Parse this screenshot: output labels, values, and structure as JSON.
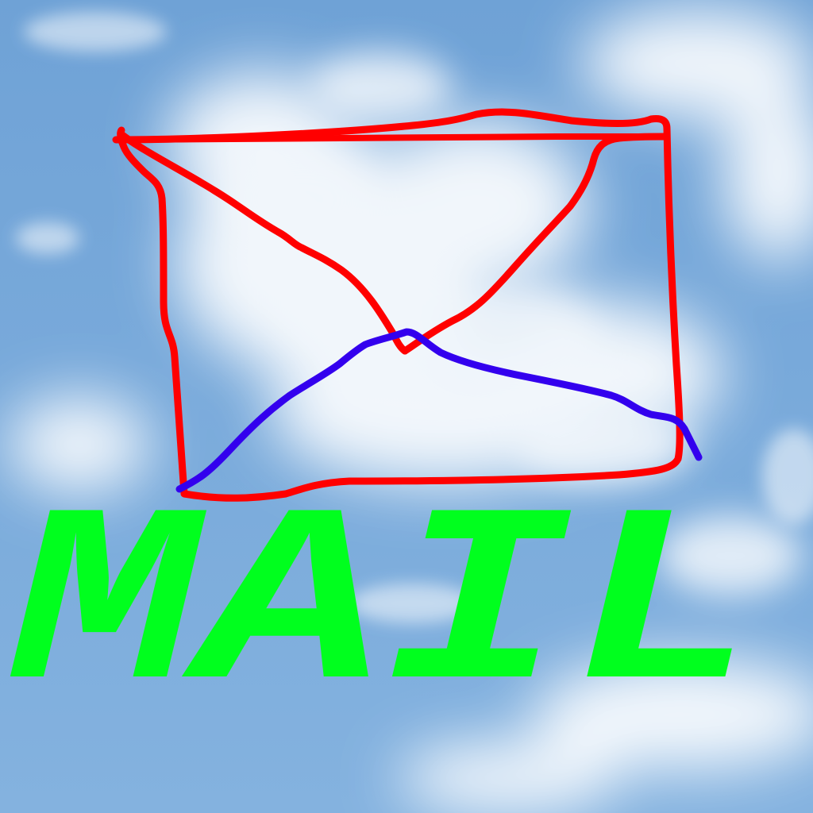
{
  "label": "MAIL",
  "colors": {
    "sky_top": "#6FA2D6",
    "sky_bottom": "#84B2DF",
    "cloud": "#FFFFFF",
    "envelope_outline": "#FF0000",
    "envelope_flap_bottom": "#3300EE",
    "label_text": "#00FF1E"
  },
  "icons": {
    "envelope": "envelope-icon"
  }
}
